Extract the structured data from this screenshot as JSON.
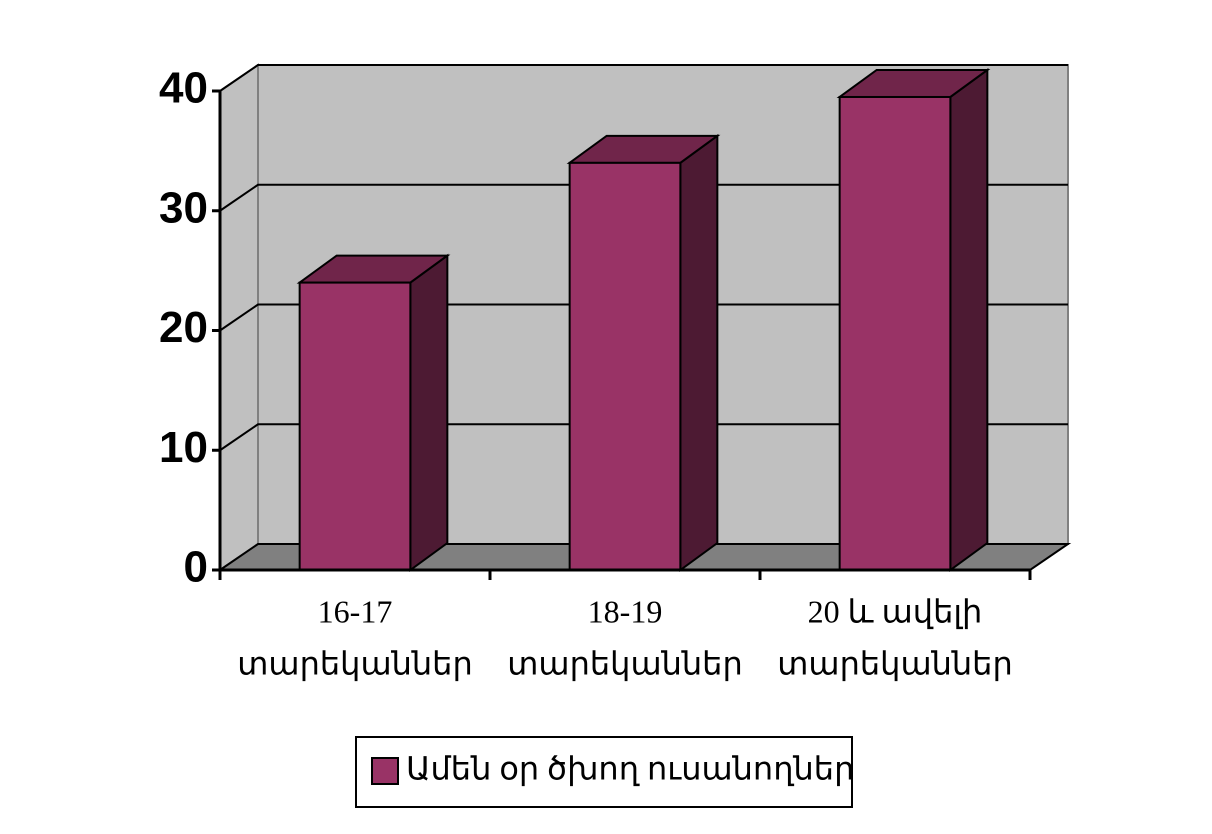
{
  "chart_data": {
    "type": "bar3d",
    "categories": [
      [
        "16-17",
        "տարեկաններ"
      ],
      [
        "18-19",
        "տարեկաններ"
      ],
      [
        "20 և ավելի",
        "տարեկաններ"
      ]
    ],
    "series": [
      {
        "name": "Ամեն օր ծխող ուսանողներ",
        "color": "#993366",
        "values": [
          24,
          34,
          39.5
        ]
      }
    ],
    "ylim": [
      0,
      40
    ],
    "yticks": [
      0,
      10,
      20,
      30,
      40
    ],
    "grid": true,
    "legend": "bottom"
  }
}
